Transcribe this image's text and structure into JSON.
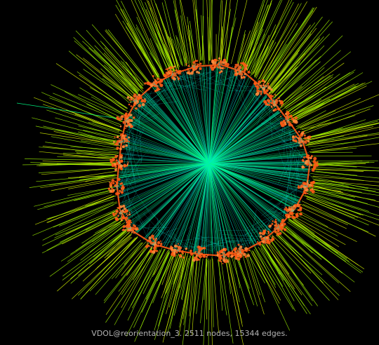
{
  "graph": {
    "name": "VDOL@reorientation_3",
    "nodes": 2511,
    "edges": 15344,
    "layout": "radial",
    "colors": {
      "background": "#000000",
      "hub_edges": "#00ff88",
      "mid_edges": "#00e0d0",
      "outer_edges": "#9cf000",
      "outer_edges_tip": "#d4f000",
      "clusters": "#ff5a14",
      "cluster_halo": "#ff8a3a",
      "caption": "#b3b3b3"
    }
  },
  "caption": {
    "text": "VDOL@reorientation_3. 2511 nodes, 15344 edges."
  }
}
